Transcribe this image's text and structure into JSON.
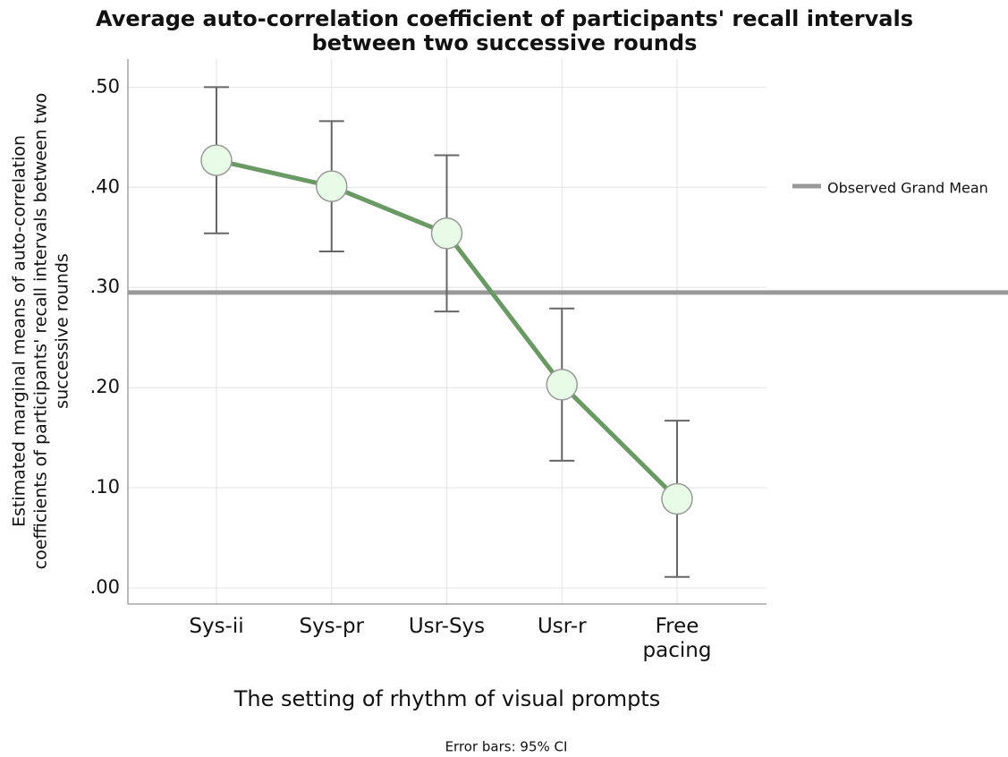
{
  "chart_data": {
    "type": "line",
    "title": [
      "Average auto-correlation coefficient of participants' recall intervals",
      "between two successive rounds"
    ],
    "xlabel": "The setting of rhythm of visual prompts",
    "ylabel": [
      "Estimated marginal means of auto-correlation",
      "coefficients of participants' recall intervals between two",
      "successive rounds"
    ],
    "footnote": "Error bars: 95% CI",
    "categories": [
      "Sys-ii",
      "Sys-pr",
      "Usr-Sys",
      "Usr-r",
      "Free pacing"
    ],
    "series": [
      {
        "name": "Estimated marginal means",
        "color": "#6a9a64",
        "marker_color": "#e8fbe6",
        "values": [
          0.427,
          0.401,
          0.354,
          0.203,
          0.089
        ],
        "errors": [
          0.073,
          0.065,
          0.078,
          0.076,
          0.078
        ]
      }
    ],
    "reference_line": {
      "name": "Observed Grand Mean",
      "value": 0.295,
      "color": "#999999"
    },
    "ylim": [
      -0.016,
      0.528
    ],
    "yticks": [
      {
        "value": 0,
        "label": ".00"
      },
      {
        "value": 0.1,
        "label": ".10"
      },
      {
        "value": 0.2,
        "label": ".20"
      },
      {
        "value": 0.3,
        "label": ".30"
      },
      {
        "value": 0.4,
        "label": ".40"
      },
      {
        "value": 0.5,
        "label": ".50"
      }
    ],
    "grid": true
  }
}
